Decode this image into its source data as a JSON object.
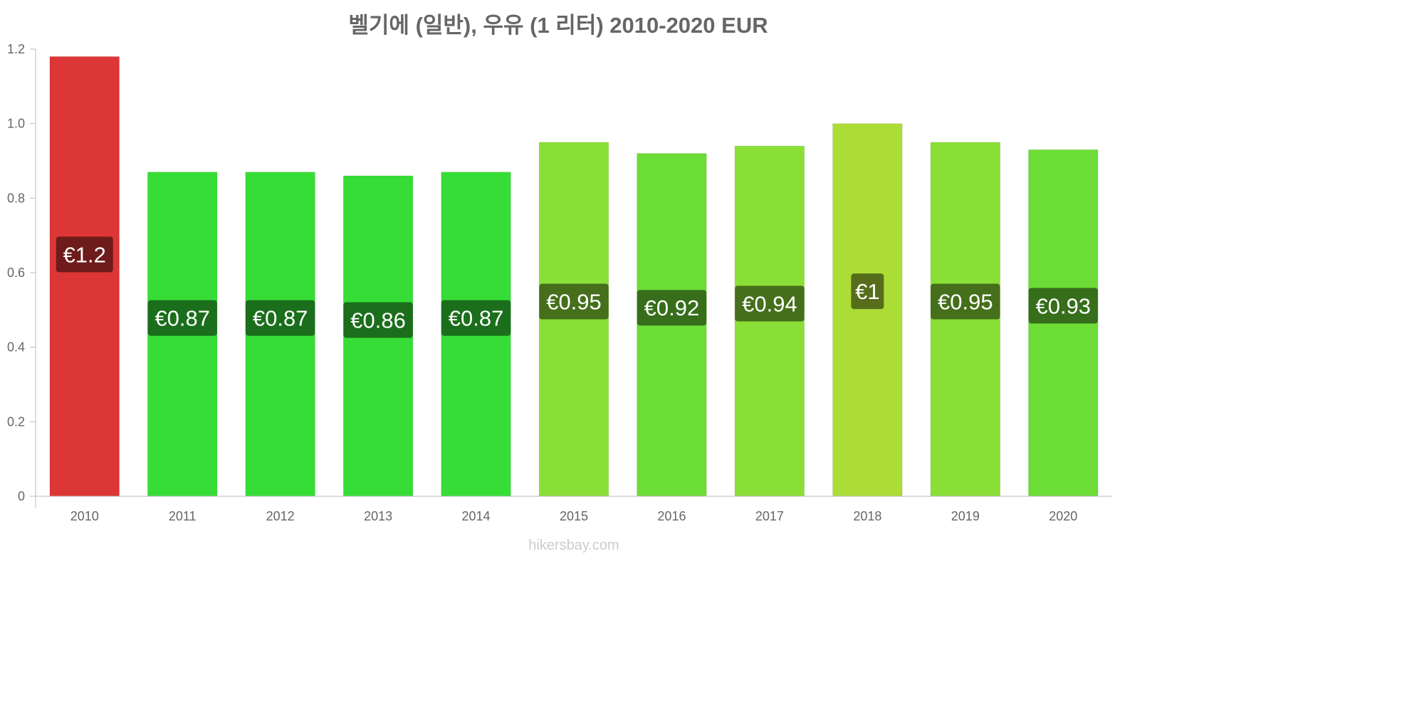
{
  "chart_data": {
    "type": "bar",
    "title": "벨기에 (일반), 우유 (1 리터) 2010-2020 EUR",
    "xlabel": "",
    "ylabel": "",
    "ylim": [
      0,
      1.2
    ],
    "y_ticks": [
      "0",
      "0.2",
      "0.4",
      "0.6",
      "0.8",
      "1.0",
      "1.2"
    ],
    "y_tick_values": [
      0,
      0.2,
      0.4,
      0.6,
      0.8,
      1.0,
      1.2
    ],
    "categories": [
      "2010",
      "2011",
      "2012",
      "2013",
      "2014",
      "2015",
      "2016",
      "2017",
      "2018",
      "2019",
      "2020"
    ],
    "values": [
      1.18,
      0.87,
      0.87,
      0.86,
      0.87,
      0.95,
      0.92,
      0.94,
      1.0,
      0.95,
      0.93
    ],
    "data_labels": [
      "€1.2",
      "€0.87",
      "€0.87",
      "€0.86",
      "€0.87",
      "€0.95",
      "€0.92",
      "€0.94",
      "€1",
      "€0.95",
      "€0.93"
    ],
    "bar_colors": [
      "#dd3636",
      "#36dd36",
      "#36dd36",
      "#36dd36",
      "#36dd36",
      "#8adf36",
      "#6cdd36",
      "#8adf36",
      "#acdd36",
      "#8adf36",
      "#6cdd36"
    ],
    "label_colors": [
      "#6e1b1b",
      "#1b6e1b",
      "#1b6e1b",
      "#1b6e1b",
      "#1b6e1b",
      "#456f1b",
      "#366e1b",
      "#456f1b",
      "#566e1b",
      "#456f1b",
      "#366e1b"
    ],
    "grid": false,
    "legend": "none"
  },
  "watermark": "hikersbay.com"
}
